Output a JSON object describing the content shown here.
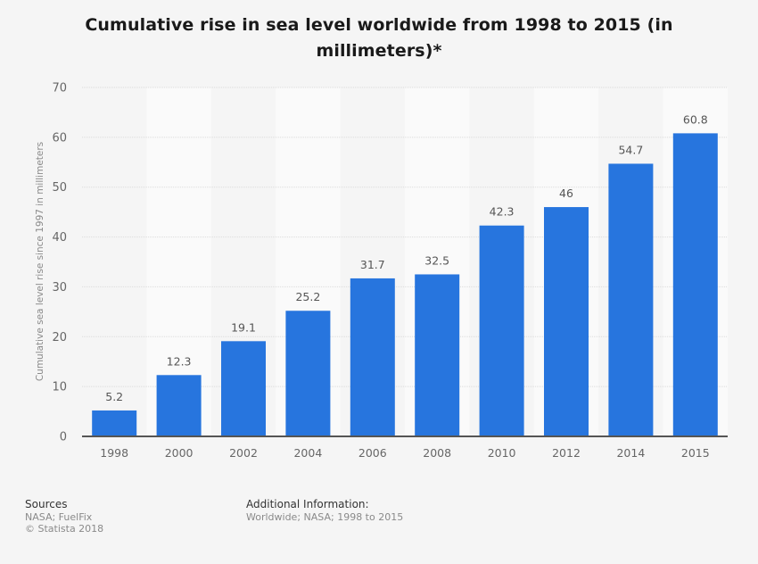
{
  "chart_data": {
    "type": "bar",
    "title": "Cumulative rise in sea level worldwide from 1998 to 2015 (in millimeters)*",
    "title_lines": [
      "Cumulative rise in sea level worldwide from 1998 to 2015 (in",
      "millimeters)*"
    ],
    "xlabel": "",
    "ylabel": "Cumulative sea level rise since 1997 in millimeters",
    "categories": [
      "1998",
      "2000",
      "2002",
      "2004",
      "2006",
      "2008",
      "2010",
      "2012",
      "2014",
      "2015"
    ],
    "values": [
      5.2,
      12.3,
      19.1,
      25.2,
      31.7,
      32.5,
      42.3,
      46,
      54.7,
      60.8
    ],
    "value_labels": [
      "5.2",
      "12.3",
      "19.1",
      "25.2",
      "31.7",
      "32.5",
      "42.3",
      "46",
      "54.7",
      "60.8"
    ],
    "ylim": [
      0,
      70
    ],
    "yticks": [
      0,
      10,
      20,
      30,
      40,
      50,
      60,
      70
    ],
    "grid": true,
    "legend": "none",
    "bar_color": "#2775de"
  },
  "footer": {
    "sources_heading": "Sources",
    "sources_line1": "NASA; FuelFix",
    "sources_line2": "© Statista 2018",
    "additional_heading": "Additional Information:",
    "additional_text": "Worldwide; NASA; 1998 to 2015"
  }
}
